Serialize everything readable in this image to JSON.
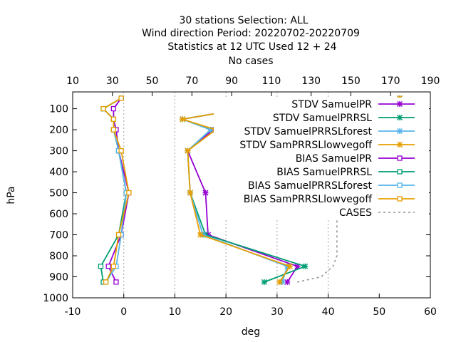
{
  "chart_data": {
    "type": "line",
    "title_lines": [
      "30 stations Selection: ALL",
      "Wind direction  Period: 20220702-20220709",
      "Statistics at 12 UTC  Used  12 + 24",
      "No cases"
    ],
    "xlabel": "deg",
    "ylabel": "hPa",
    "xlim": [
      -10,
      60
    ],
    "ylim": [
      1000,
      20
    ],
    "x_ticks": [
      "-10",
      "0",
      "10",
      "20",
      "30",
      "40",
      "50",
      "60"
    ],
    "y_ticks": [
      "100",
      "200",
      "300",
      "400",
      "500",
      "600",
      "700",
      "800",
      "900",
      "1000"
    ],
    "x2lim": [
      10,
      190
    ],
    "x2_ticks": [
      "10",
      "30",
      "50",
      "70",
      "90",
      "110",
      "130",
      "150",
      "170",
      "190"
    ],
    "grid": "vertical dashed at x=0,10,20,30,40",
    "legend_position": "top-right inside",
    "series": [
      {
        "name": "STDV SamuelPR",
        "color": "#9400d3",
        "marker": "x",
        "x": [
          54,
          23.5,
          11.5,
          17.5,
          12.5,
          16,
          16.5,
          34,
          32
        ],
        "y": [
          50,
          100,
          150,
          200,
          300,
          500,
          700,
          850,
          925
        ]
      },
      {
        "name": "STDV SamuelPR_R SL",
        "color": "#009e73",
        "marker": "x",
        "x": [
          54,
          23.5,
          11.5,
          17,
          12.5,
          13,
          16,
          35.5,
          27.5
        ],
        "y": [
          50,
          100,
          150,
          200,
          300,
          500,
          700,
          850,
          925
        ]
      },
      {
        "name": "STDV SamuelPR_R SL_f orest",
        "color": "#56b4e9",
        "marker": "x",
        "x": [
          54,
          23.5,
          11.5,
          17,
          12.5,
          13,
          15.5,
          32,
          31
        ],
        "y": [
          50,
          100,
          150,
          200,
          300,
          500,
          700,
          850,
          925
        ]
      },
      {
        "name": "STDV SamPR_R SL_l owvegoff",
        "color": "#e69f00",
        "marker": "x",
        "x": [
          54,
          23.5,
          11.5,
          18,
          12.5,
          13,
          15,
          32.5,
          30.5
        ],
        "y": [
          50,
          100,
          150,
          200,
          300,
          500,
          700,
          850,
          925
        ]
      },
      {
        "name": "BIAS SamuelPR",
        "color": "#9400d3",
        "marker": "square",
        "x": [
          -0.5,
          -2,
          -2,
          -1.5,
          -1,
          1,
          -0.5,
          -3,
          -1.5
        ],
        "y": [
          50,
          100,
          150,
          200,
          300,
          500,
          700,
          850,
          925
        ]
      },
      {
        "name": "BIAS SamuelPR_R SL",
        "color": "#009e73",
        "marker": "square",
        "x": [
          -0.5,
          -4,
          -2,
          -2,
          -1,
          0.5,
          -1,
          -4.5,
          -4
        ],
        "y": [
          50,
          100,
          150,
          200,
          300,
          500,
          700,
          850,
          925
        ]
      },
      {
        "name": "BIAS SamuelPR_R SL_f orest",
        "color": "#56b4e9",
        "marker": "square",
        "x": [
          -0.5,
          -4,
          -2,
          -2,
          -1,
          0.5,
          -0.5,
          -1.5,
          -3.5
        ],
        "y": [
          50,
          100,
          150,
          200,
          300,
          500,
          700,
          850,
          925
        ]
      },
      {
        "name": "BIAS SamPR_R SL_l owvegoff",
        "color": "#e69f00",
        "marker": "square",
        "x": [
          -0.5,
          -4,
          -2,
          -2,
          -0.5,
          1,
          -1,
          -2,
          -3.5
        ],
        "y": [
          50,
          100,
          150,
          200,
          300,
          500,
          700,
          850,
          925
        ]
      },
      {
        "name": "CASES",
        "color": "#909090",
        "marker": "none",
        "dashed": true,
        "axis": "x2",
        "x": [
          93,
          143,
          143,
          143,
          143,
          143,
          143,
          143,
          141,
          135,
          123
        ],
        "y": [
          50,
          60,
          100,
          200,
          300,
          500,
          700,
          800,
          850,
          900,
          925
        ]
      }
    ]
  }
}
